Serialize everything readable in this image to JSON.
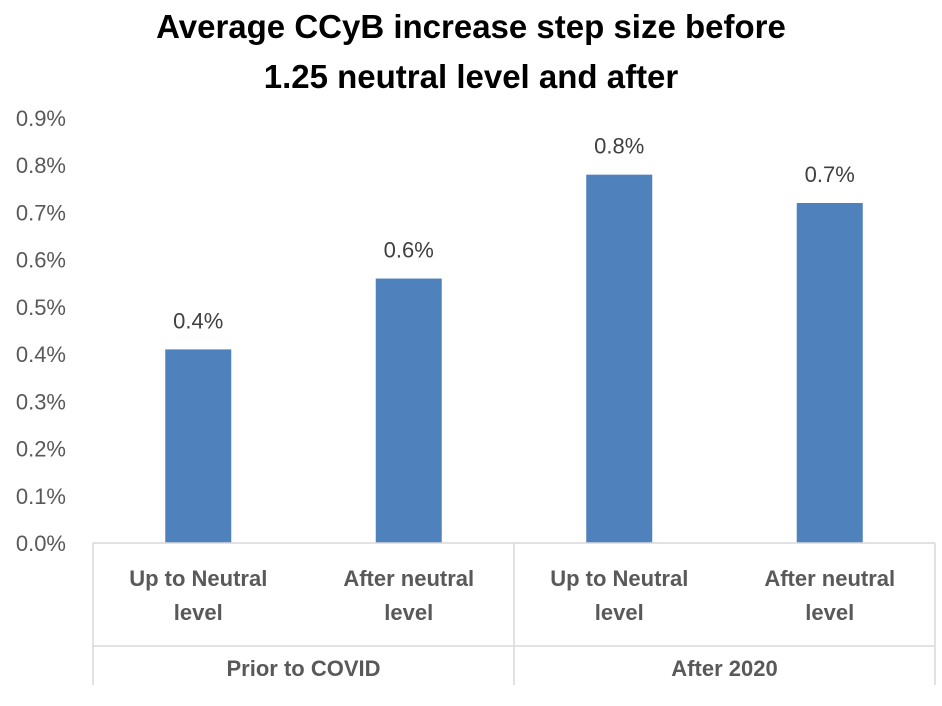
{
  "chart_data": {
    "type": "bar",
    "title_line1": "Average CCyB increase step size before",
    "title_line2": "1.25 neutral level and after",
    "categories": [
      [
        "Up to Neutral",
        "level"
      ],
      [
        "After neutral",
        "level"
      ],
      [
        "Up to Neutral",
        "level"
      ],
      [
        "After neutral",
        "level"
      ]
    ],
    "groups": [
      {
        "label": "Prior to COVID",
        "span": 2
      },
      {
        "label": "After 2020",
        "span": 2
      }
    ],
    "values": [
      0.41,
      0.56,
      0.78,
      0.72
    ],
    "data_labels": [
      "0.4%",
      "0.6%",
      "0.8%",
      "0.7%"
    ],
    "yticks": [
      "0.0%",
      "0.1%",
      "0.2%",
      "0.3%",
      "0.4%",
      "0.5%",
      "0.6%",
      "0.7%",
      "0.8%",
      "0.9%"
    ],
    "ylim": [
      0,
      0.9
    ],
    "bar_color": "#4F81BD",
    "grid": false,
    "legend": "none"
  }
}
